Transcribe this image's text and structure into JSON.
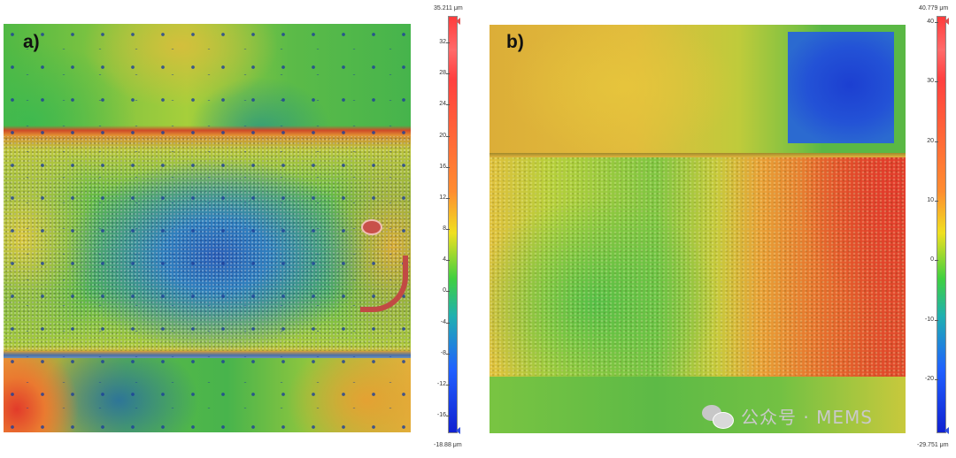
{
  "panels": [
    {
      "label": "a)",
      "scale": {
        "max_label": "35.211 μm",
        "min_label": "-18.88 μm",
        "ticks": [
          "32",
          "28",
          "24",
          "20",
          "16",
          "12",
          "8",
          "4",
          "0",
          "-4",
          "-8",
          "-12",
          "-16"
        ]
      }
    },
    {
      "label": "b)",
      "scale": {
        "max_label": "40.779 μm",
        "min_label": "-29.751 μm",
        "ticks": [
          "40",
          "30",
          "20",
          "10",
          "0",
          "-10",
          "-20"
        ]
      }
    }
  ],
  "watermark": {
    "text": "公众号 · MEMS",
    "icon": "wechat-icon"
  },
  "colors": {
    "high": "#ff3b3b",
    "mid": "#f0e020",
    "low": "#1020d0"
  }
}
